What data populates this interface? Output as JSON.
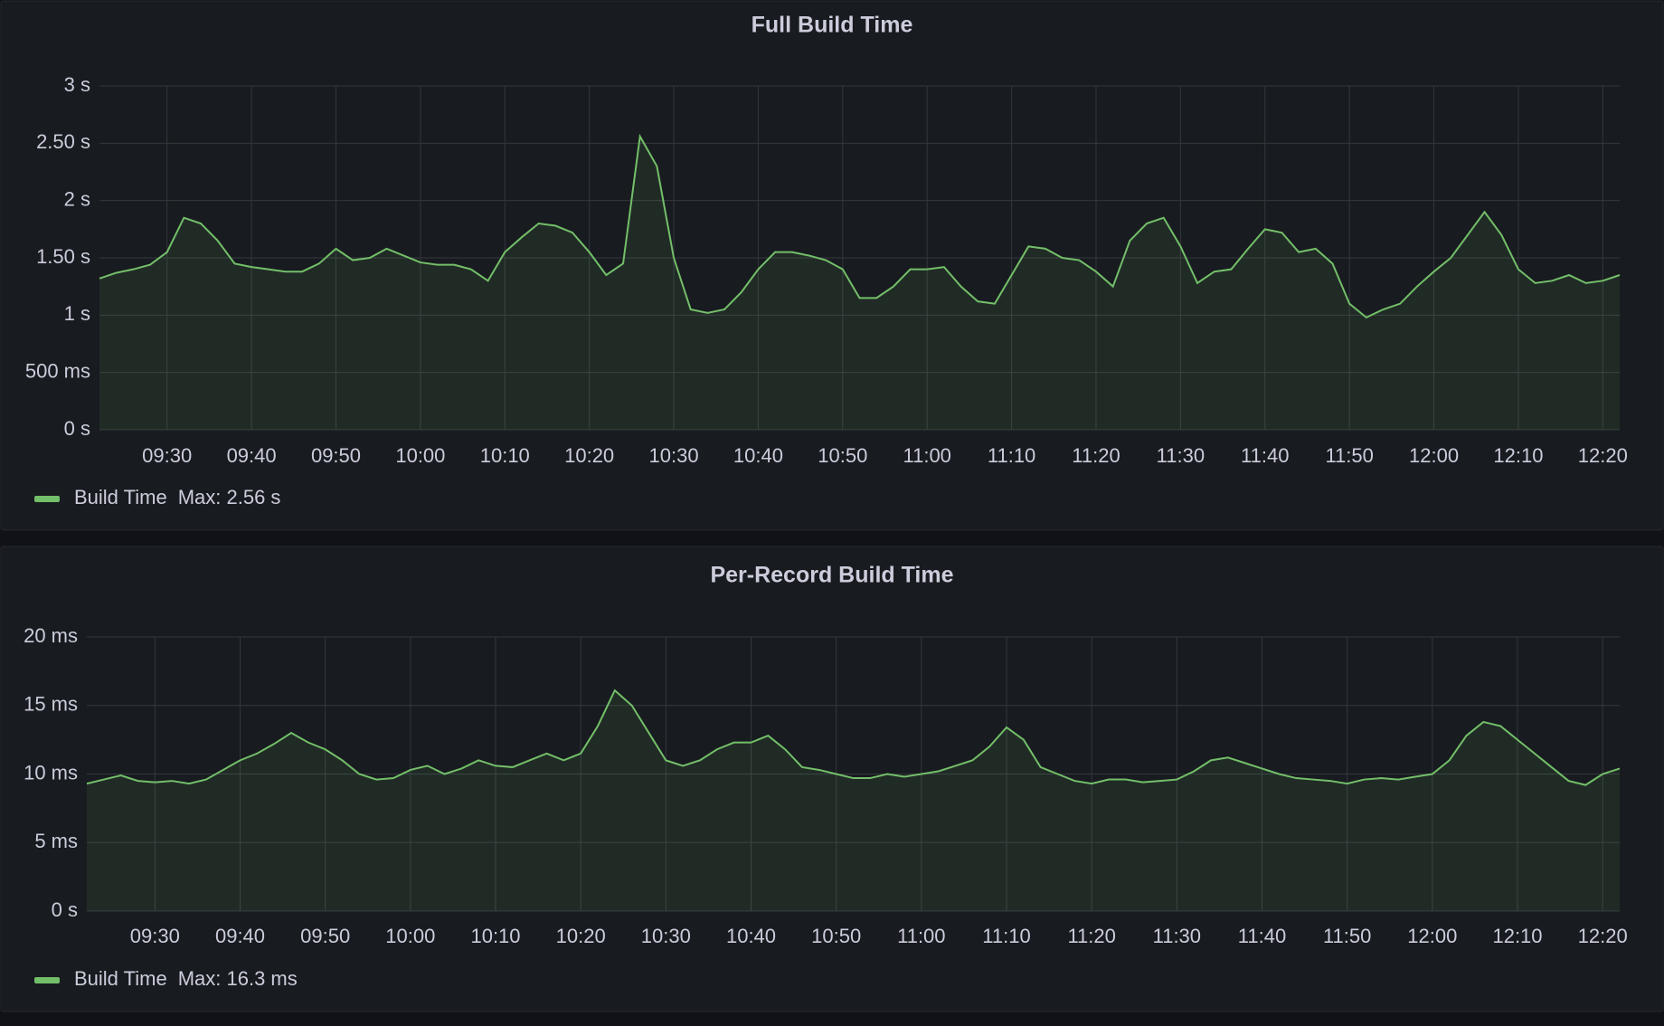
{
  "chart_data": [
    {
      "type": "line",
      "title": "Full Build Time",
      "x": [
        "09:22",
        "09:24",
        "09:26",
        "09:28",
        "09:30",
        "09:32",
        "09:34",
        "09:36",
        "09:38",
        "09:40",
        "09:42",
        "09:44",
        "09:46",
        "09:48",
        "09:50",
        "09:52",
        "09:54",
        "09:56",
        "09:58",
        "10:00",
        "10:02",
        "10:04",
        "10:06",
        "10:08",
        "10:10",
        "10:12",
        "10:14",
        "10:16",
        "10:18",
        "10:20",
        "10:22",
        "10:24",
        "10:26",
        "10:28",
        "10:30",
        "10:32",
        "10:34",
        "10:36",
        "10:38",
        "10:40",
        "10:42",
        "10:44",
        "10:46",
        "10:48",
        "10:50",
        "10:52",
        "10:54",
        "10:56",
        "10:58",
        "11:00",
        "11:02",
        "11:04",
        "11:06",
        "11:08",
        "11:10",
        "11:12",
        "11:14",
        "11:16",
        "11:18",
        "11:20",
        "11:22",
        "11:24",
        "11:26",
        "11:28",
        "11:30",
        "11:32",
        "11:34",
        "11:36",
        "11:38",
        "11:40",
        "11:42",
        "11:44",
        "11:46",
        "11:48",
        "11:50",
        "11:52",
        "11:54",
        "11:56",
        "11:58",
        "12:00",
        "12:02",
        "12:04",
        "12:06",
        "12:08",
        "12:10",
        "12:12",
        "12:14",
        "12:16",
        "12:18",
        "12:20",
        "12:22"
      ],
      "series": [
        {
          "name": "Build Time",
          "color": "#73bf69",
          "values": [
            1.32,
            1.37,
            1.4,
            1.44,
            1.55,
            1.85,
            1.8,
            1.65,
            1.45,
            1.42,
            1.4,
            1.38,
            1.38,
            1.45,
            1.58,
            1.48,
            1.5,
            1.58,
            1.52,
            1.46,
            1.44,
            1.44,
            1.4,
            1.3,
            1.55,
            1.68,
            1.8,
            1.78,
            1.72,
            1.55,
            1.35,
            1.45,
            2.56,
            2.3,
            1.5,
            1.05,
            1.02,
            1.05,
            1.2,
            1.4,
            1.55,
            1.55,
            1.52,
            1.48,
            1.4,
            1.15,
            1.15,
            1.25,
            1.4,
            1.4,
            1.42,
            1.25,
            1.12,
            1.1,
            1.35,
            1.6,
            1.58,
            1.5,
            1.48,
            1.38,
            1.25,
            1.65,
            1.8,
            1.85,
            1.6,
            1.28,
            1.38,
            1.4,
            1.58,
            1.75,
            1.72,
            1.55,
            1.58,
            1.45,
            1.1,
            0.98,
            1.05,
            1.1,
            1.25,
            1.38,
            1.5,
            1.7,
            1.9,
            1.7,
            1.4,
            1.28,
            1.3,
            1.35,
            1.28,
            1.3,
            1.35
          ],
          "max": {
            "value": 2.56,
            "label": "Max: 2.56 s"
          }
        }
      ],
      "xlim": [
        "09:22",
        "12:22"
      ],
      "xticks": [
        "09:30",
        "09:40",
        "09:50",
        "10:00",
        "10:10",
        "10:20",
        "10:30",
        "10:40",
        "10:50",
        "11:00",
        "11:10",
        "11:20",
        "11:30",
        "11:40",
        "11:50",
        "12:00",
        "12:10",
        "12:20"
      ],
      "ylim": [
        0,
        3
      ],
      "yticks": [
        {
          "value": 0,
          "label": "0 s"
        },
        {
          "value": 0.5,
          "label": "500 ms"
        },
        {
          "value": 1,
          "label": "1 s"
        },
        {
          "value": 1.5,
          "label": "1.50 s"
        },
        {
          "value": 2,
          "label": "2 s"
        },
        {
          "value": 2.5,
          "label": "2.50 s"
        },
        {
          "value": 3,
          "label": "3 s"
        }
      ],
      "grid": true
    },
    {
      "type": "line",
      "title": "Per-Record Build Time",
      "x": [
        "09:22",
        "09:24",
        "09:26",
        "09:28",
        "09:30",
        "09:32",
        "09:34",
        "09:36",
        "09:38",
        "09:40",
        "09:42",
        "09:44",
        "09:46",
        "09:48",
        "09:50",
        "09:52",
        "09:54",
        "09:56",
        "09:58",
        "10:00",
        "10:02",
        "10:04",
        "10:06",
        "10:08",
        "10:10",
        "10:12",
        "10:14",
        "10:16",
        "10:18",
        "10:20",
        "10:22",
        "10:24",
        "10:26",
        "10:28",
        "10:30",
        "10:32",
        "10:34",
        "10:36",
        "10:38",
        "10:40",
        "10:42",
        "10:44",
        "10:46",
        "10:48",
        "10:50",
        "10:52",
        "10:54",
        "10:56",
        "10:58",
        "11:00",
        "11:02",
        "11:04",
        "11:06",
        "11:08",
        "11:10",
        "11:12",
        "11:14",
        "11:16",
        "11:18",
        "11:20",
        "11:22",
        "11:24",
        "11:26",
        "11:28",
        "11:30",
        "11:32",
        "11:34",
        "11:36",
        "11:38",
        "11:40",
        "11:42",
        "11:44",
        "11:46",
        "11:48",
        "11:50",
        "11:52",
        "11:54",
        "11:56",
        "11:58",
        "12:00",
        "12:02",
        "12:04",
        "12:06",
        "12:08",
        "12:10",
        "12:12",
        "12:14",
        "12:16",
        "12:18",
        "12:20",
        "12:22"
      ],
      "series": [
        {
          "name": "Build Time",
          "color": "#73bf69",
          "values": [
            9.3,
            9.6,
            9.9,
            9.5,
            9.4,
            9.5,
            9.3,
            9.6,
            10.3,
            11.0,
            11.5,
            12.2,
            13.0,
            12.3,
            11.8,
            11.0,
            10.0,
            9.6,
            9.7,
            10.3,
            10.6,
            10.0,
            10.4,
            11.0,
            10.6,
            10.5,
            11.0,
            11.5,
            11.0,
            11.5,
            13.5,
            16.1,
            15.0,
            13.0,
            11.0,
            10.6,
            11.0,
            11.8,
            12.3,
            12.3,
            12.8,
            11.8,
            10.5,
            10.3,
            10.0,
            9.7,
            9.7,
            10.0,
            9.8,
            10.0,
            10.2,
            10.6,
            11.0,
            12.0,
            13.4,
            12.5,
            10.5,
            10.0,
            9.5,
            9.3,
            9.6,
            9.6,
            9.4,
            9.5,
            9.6,
            10.2,
            11.0,
            11.2,
            10.8,
            10.4,
            10.0,
            9.7,
            9.6,
            9.5,
            9.3,
            9.6,
            9.7,
            9.6,
            9.8,
            10.0,
            11.0,
            12.8,
            13.8,
            13.5,
            12.5,
            11.5,
            10.5,
            9.5,
            9.2,
            10.0,
            10.4
          ],
          "max": {
            "value": 16.3,
            "label": "Max: 16.3 ms"
          }
        }
      ],
      "xlim": [
        "09:22",
        "12:22"
      ],
      "xticks": [
        "09:30",
        "09:40",
        "09:50",
        "10:00",
        "10:10",
        "10:20",
        "10:30",
        "10:40",
        "10:50",
        "11:00",
        "11:10",
        "11:20",
        "11:30",
        "11:40",
        "11:50",
        "12:00",
        "12:10",
        "12:20"
      ],
      "ylim": [
        0,
        20
      ],
      "yticks": [
        {
          "value": 0,
          "label": "0 s"
        },
        {
          "value": 5,
          "label": "5 ms"
        },
        {
          "value": 10,
          "label": "10 ms"
        },
        {
          "value": 15,
          "label": "15 ms"
        },
        {
          "value": 20,
          "label": "20 ms"
        }
      ],
      "grid": true
    }
  ]
}
